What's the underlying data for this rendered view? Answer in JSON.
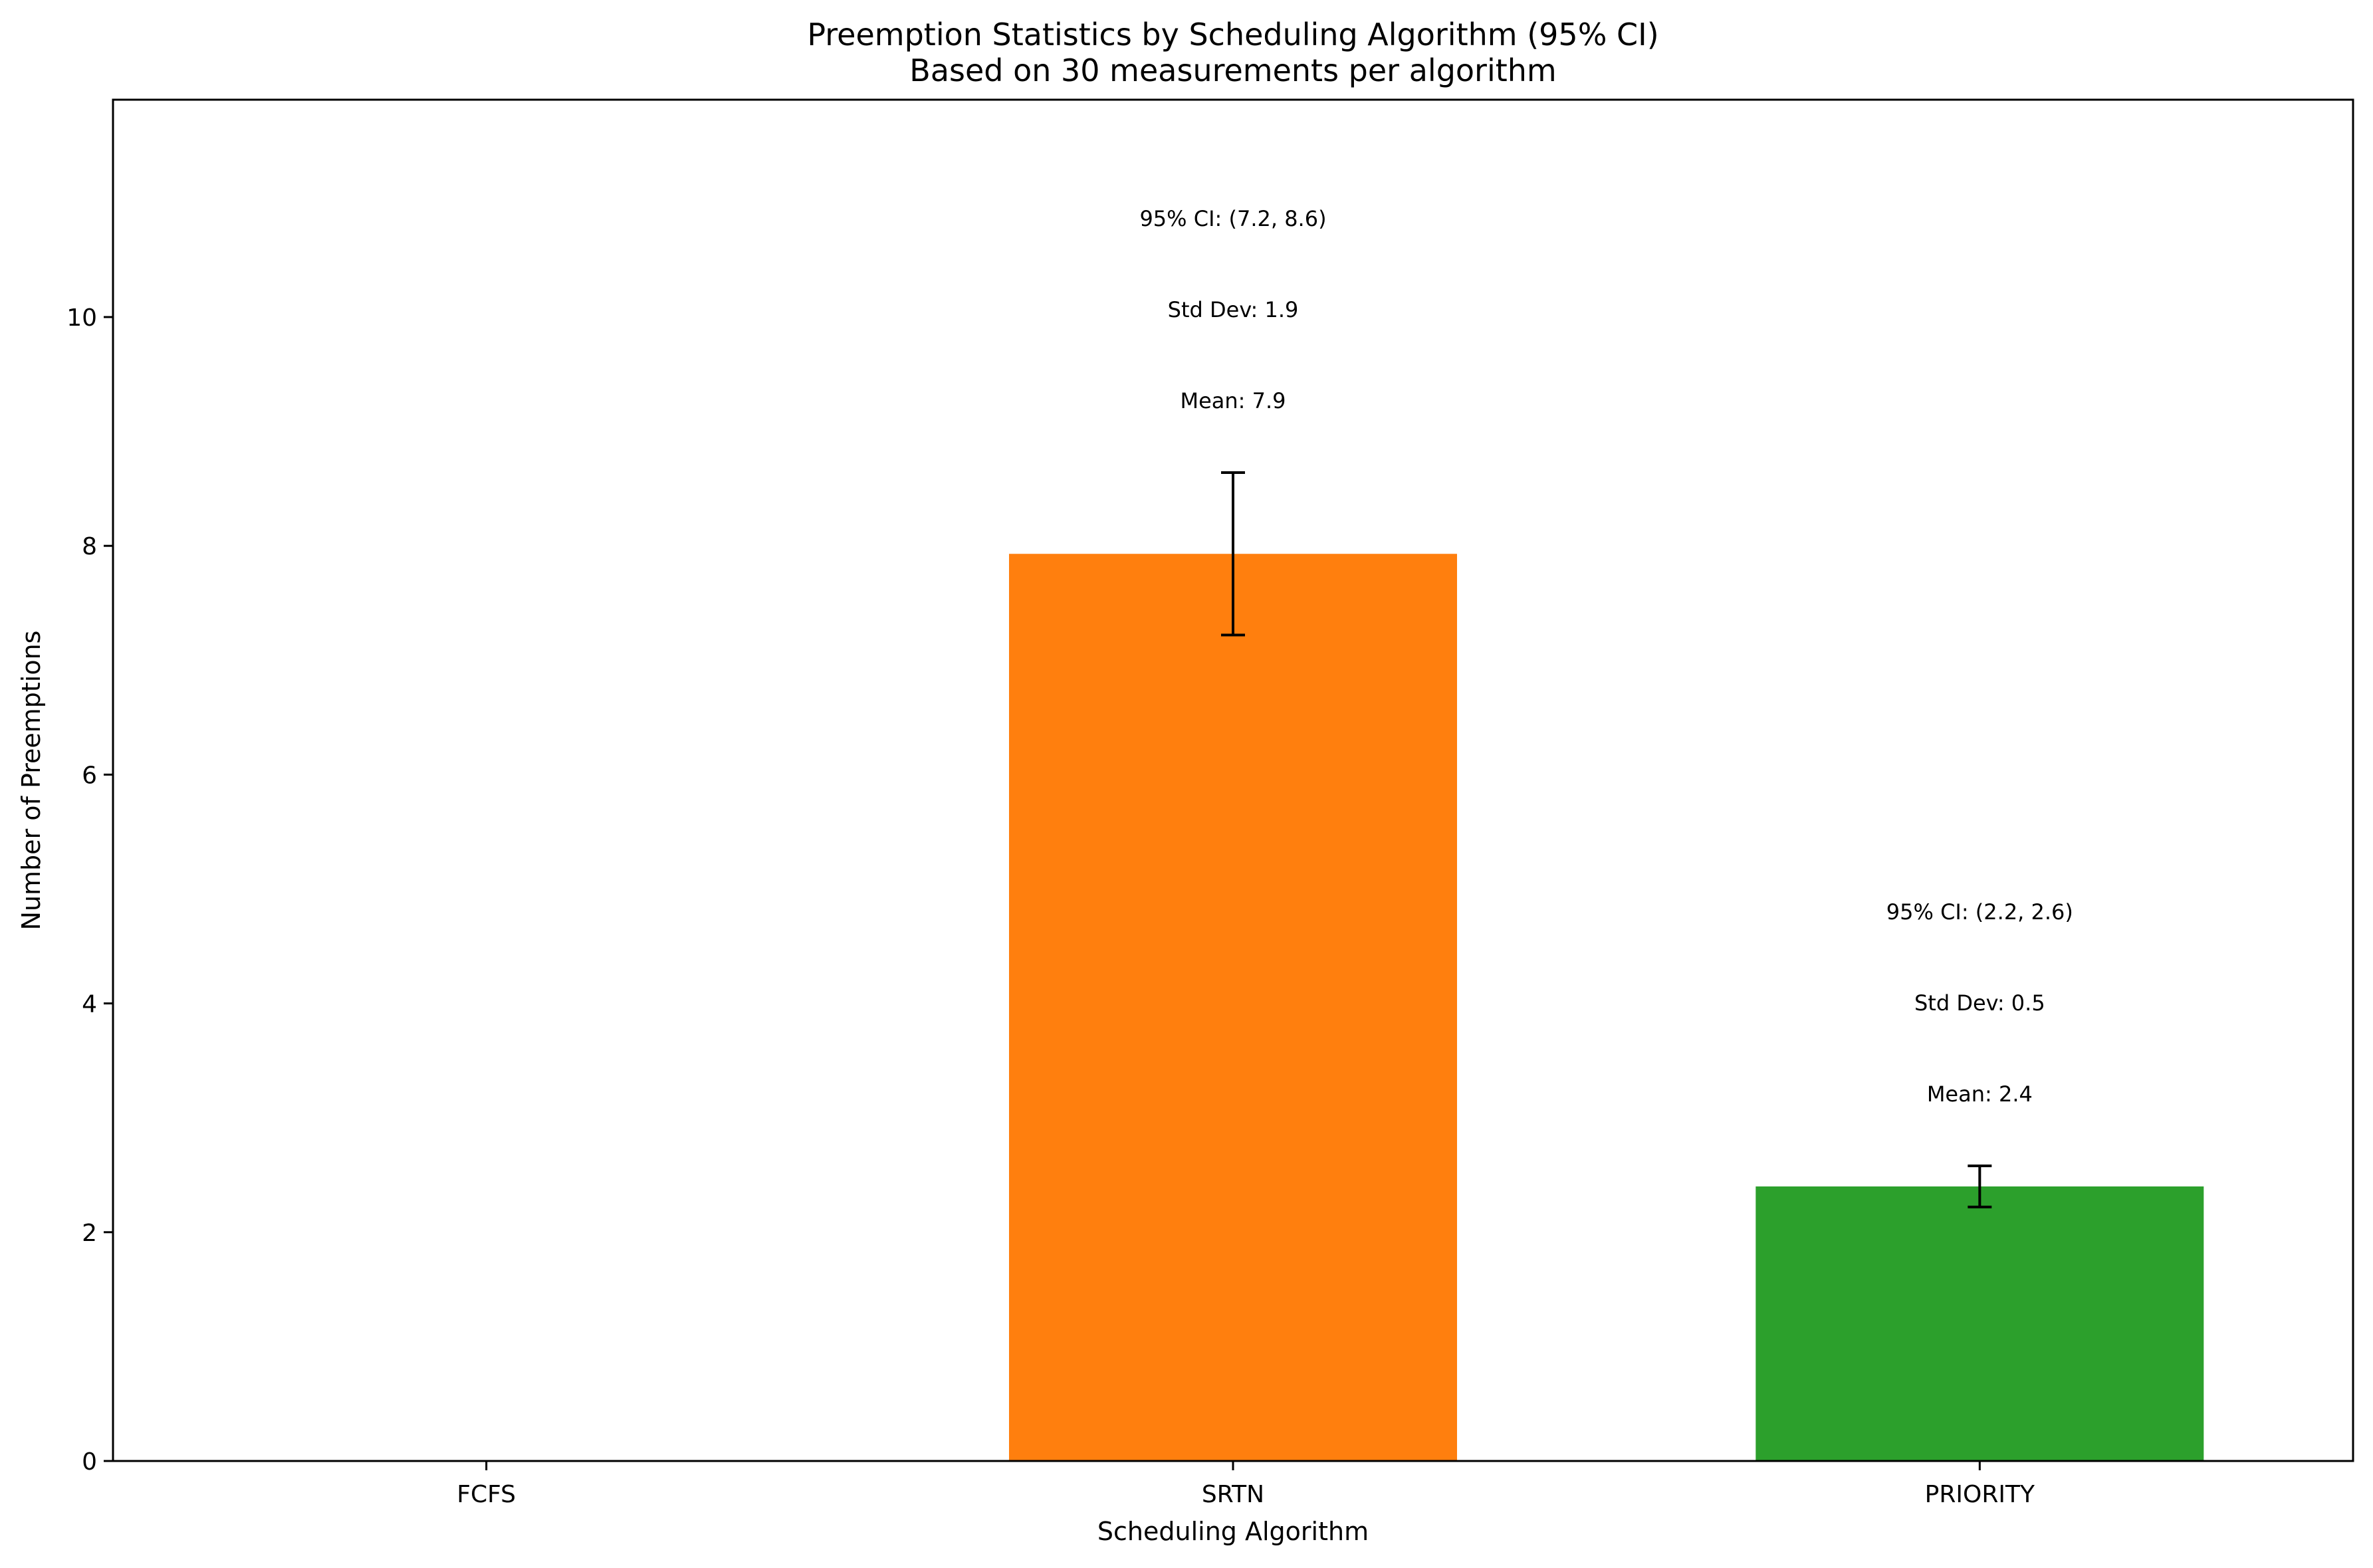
{
  "chart_data": {
    "type": "bar",
    "title": "Preemption Statistics by Scheduling Algorithm (95% CI)",
    "subtitle": "Based on 30 measurements per algorithm",
    "xlabel": "Scheduling Algorithm",
    "ylabel": "Number of Preemptions",
    "categories": [
      "FCFS",
      "SRTN",
      "PRIORITY"
    ],
    "values": [
      0,
      7.93,
      2.4
    ],
    "ci_lower": [
      0,
      7.22,
      2.22
    ],
    "ci_upper": [
      0,
      8.64,
      2.58
    ],
    "colors": [
      "#1f77b4",
      "#ff7f0e",
      "#2ca02c"
    ],
    "ylim": [
      0,
      11.9
    ],
    "yticks": [
      0,
      2,
      4,
      6,
      8,
      10
    ],
    "grid": false,
    "legend": "none",
    "annotations": [
      null,
      {
        "mean": "Mean: 7.9",
        "std": "Std Dev: 1.9",
        "ci": "95% CI: (7.2, 8.6)"
      },
      {
        "mean": "Mean: 2.4",
        "std": "Std Dev: 0.5",
        "ci": "95% CI: (2.2, 2.6)"
      }
    ]
  }
}
